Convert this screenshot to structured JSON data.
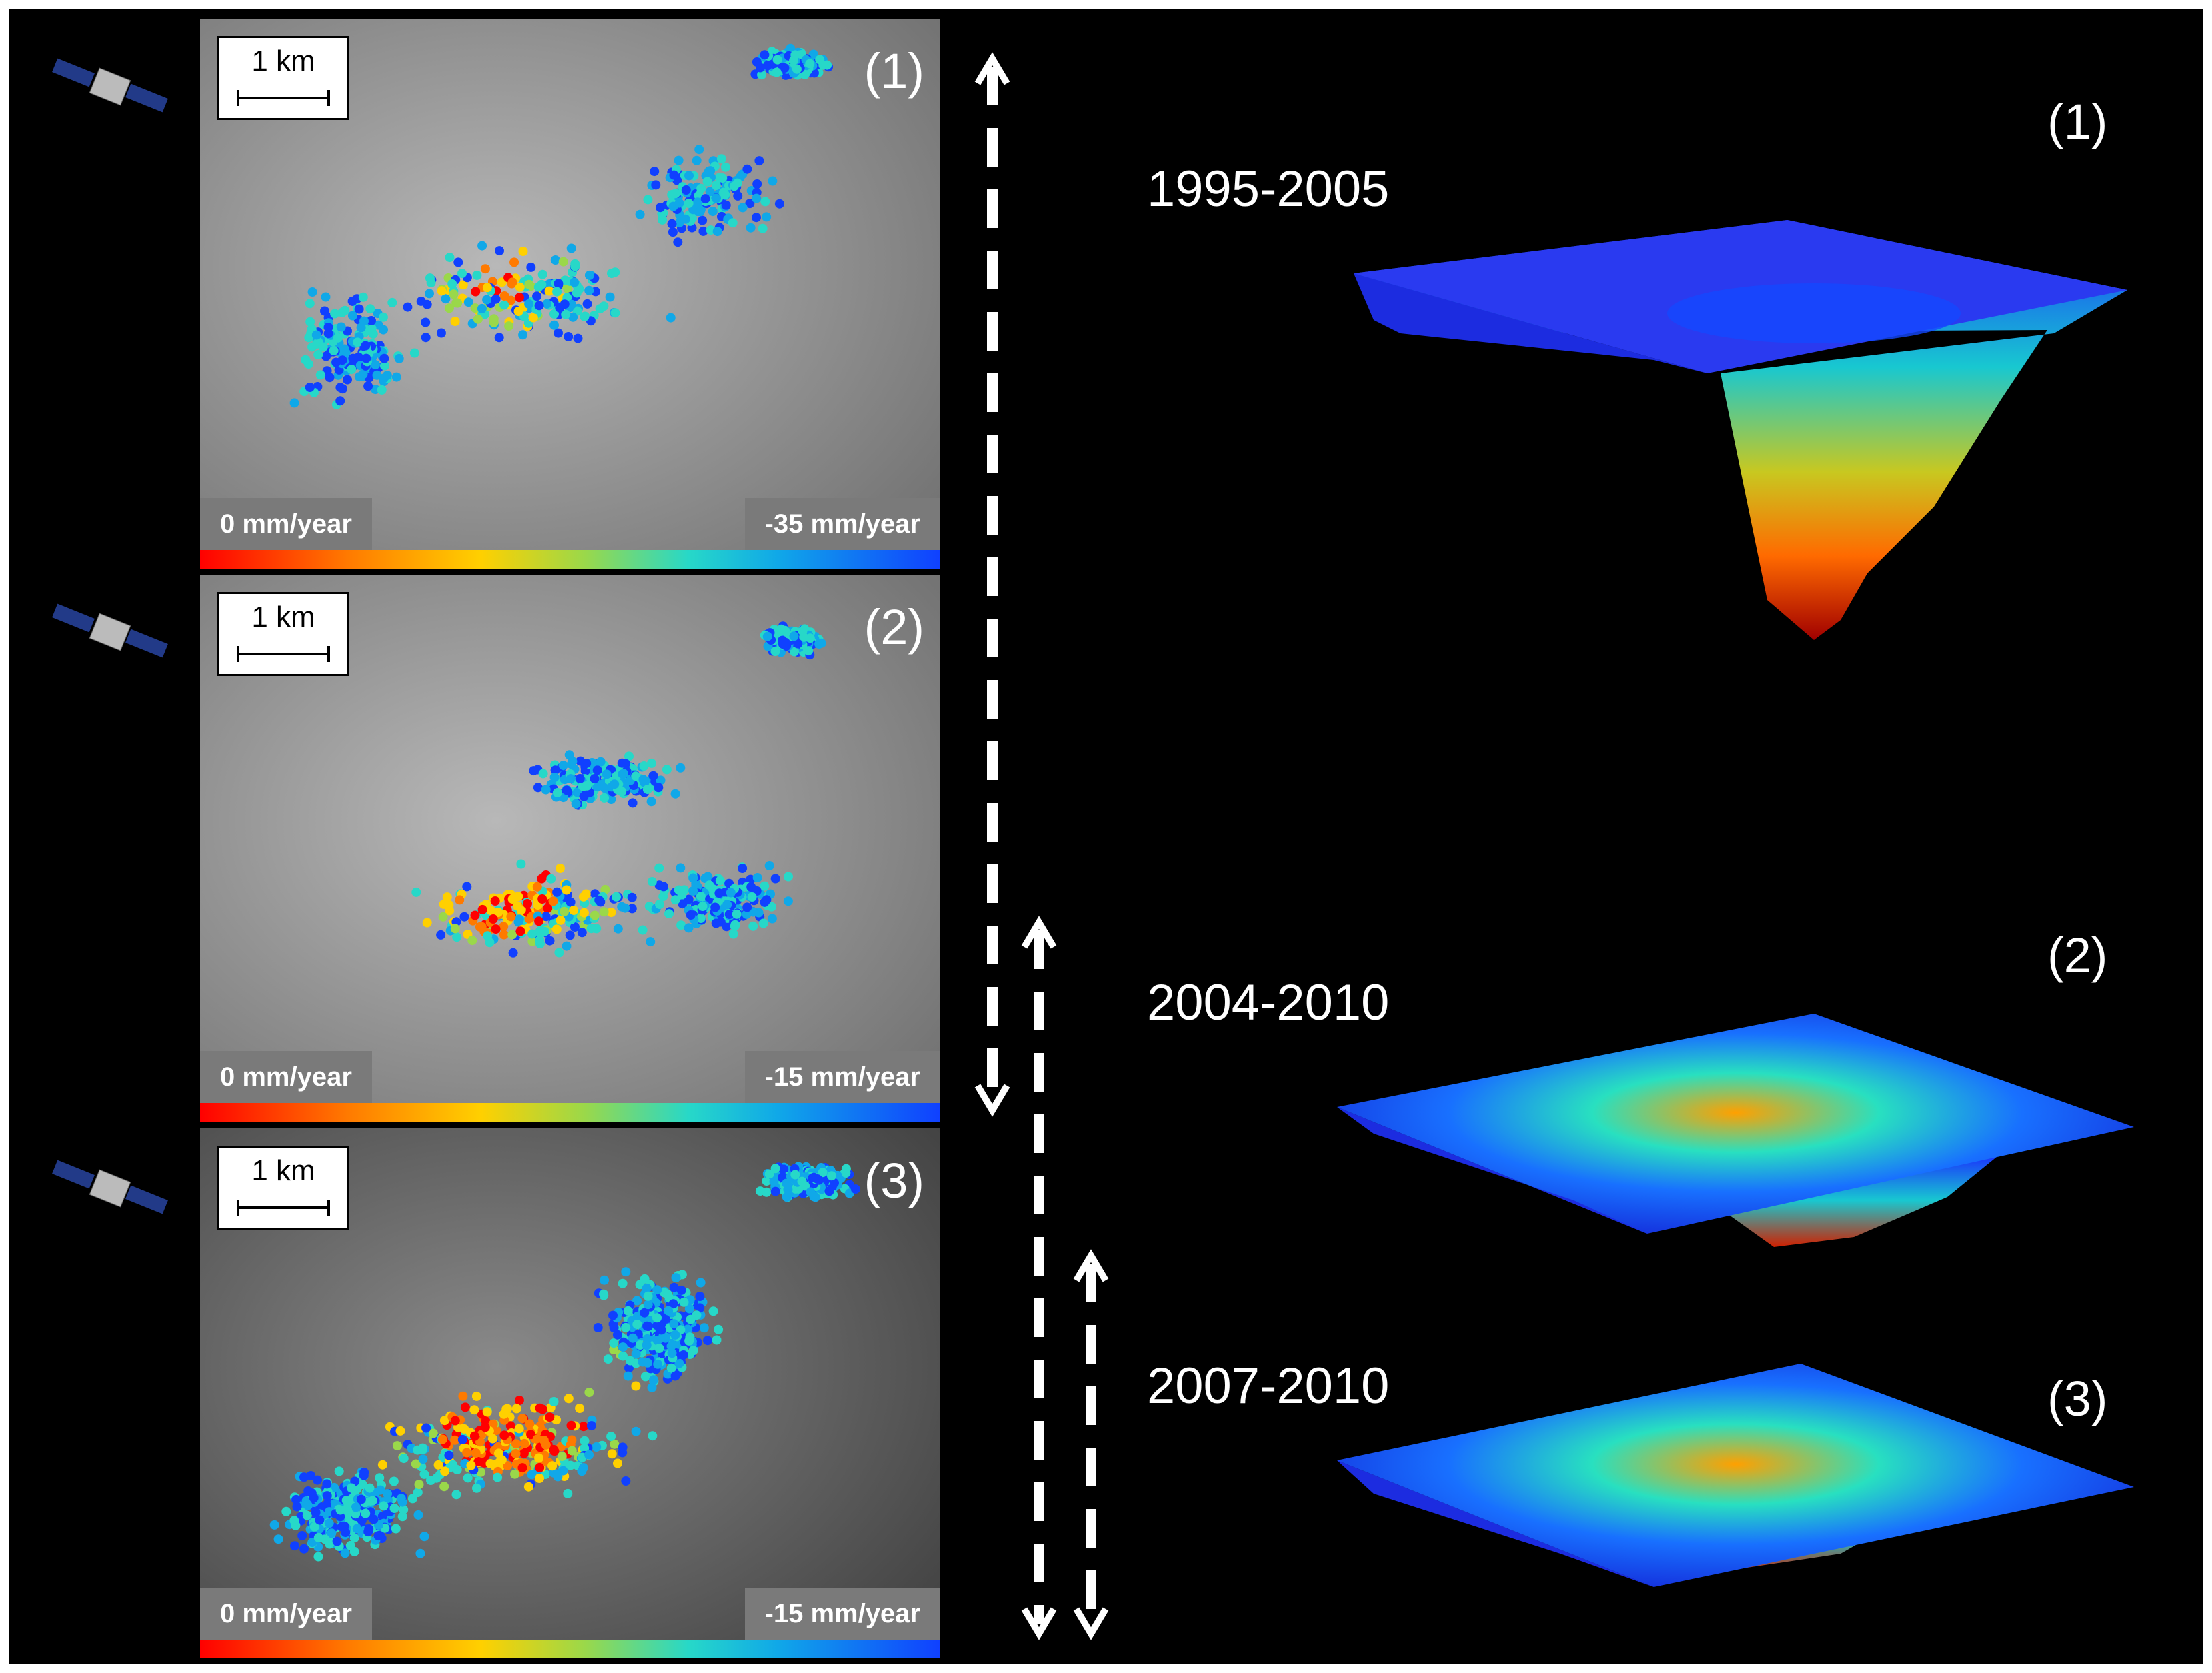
{
  "panels": [
    {
      "scale": "1 km",
      "label": "(1)",
      "legend_left": "0 mm/year",
      "legend_right": "-35 mm/year"
    },
    {
      "scale": "1 km",
      "label": "(2)",
      "legend_left": "0 mm/year",
      "legend_right": "-15 mm/year"
    },
    {
      "scale": "1 km",
      "label": "(3)",
      "legend_left": "0 mm/year",
      "legend_right": "-15 mm/year"
    }
  ],
  "models": [
    {
      "period": "1995-2005",
      "label": "(1)"
    },
    {
      "period": "2004-2010",
      "label": "(2)"
    },
    {
      "period": "2007-2010",
      "label": "(3)"
    }
  ],
  "colors": {
    "background": "#000000",
    "velocity_scale": [
      "#ff0000",
      "#ff7a00",
      "#ffd000",
      "#9ad84a",
      "#27d8c8",
      "#10a8e8",
      "#1040ff"
    ],
    "arrow": "#ffffff"
  },
  "icons": {
    "satellite": "satellite-icon"
  }
}
